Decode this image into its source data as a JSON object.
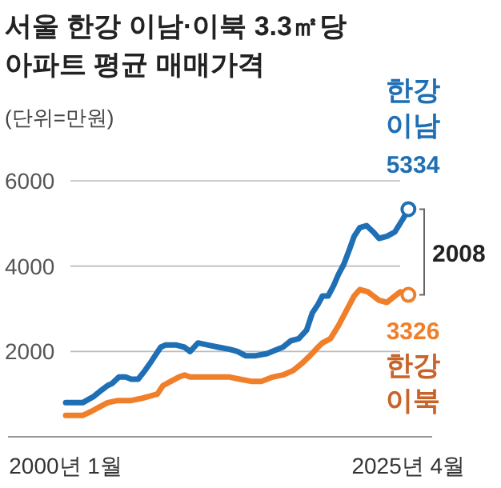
{
  "chart_data": {
    "type": "line",
    "title": "서울 한강 이남·이북 3.3㎡당\n아파트 평균 매매가격",
    "subtitle": "(단위=만원)",
    "xlim": [
      "1995-10",
      "2027-01"
    ],
    "ylim": [
      0,
      6000
    ],
    "yticks": [
      2000,
      4000,
      6000
    ],
    "xticks": [
      {
        "value": "2000-01",
        "label": "2000년 1월"
      },
      {
        "value": "2025-04",
        "label": "2025년 4월"
      }
    ],
    "grid": "y",
    "annotations": [
      "2008"
    ],
    "series": [
      {
        "name": "한강 이남",
        "color": "#1f6fb5",
        "x": [
          "2000-01",
          "2001-04",
          "2002-02",
          "2002-09",
          "2003-02",
          "2003-06",
          "2003-12",
          "2004-06",
          "2004-11",
          "2005-05",
          "2005-11",
          "2006-03",
          "2006-08",
          "2007-01",
          "2007-05",
          "2008-03",
          "2008-10",
          "2009-03",
          "2009-10",
          "2010-07",
          "2011-04",
          "2012-02",
          "2012-09",
          "2013-04",
          "2014-01",
          "2014-11",
          "2015-08",
          "2016-01",
          "2016-08",
          "2017-03",
          "2017-10",
          "2018-03",
          "2018-08",
          "2018-12",
          "2019-05",
          "2019-10",
          "2020-02",
          "2020-07",
          "2020-12",
          "2021-04",
          "2021-09",
          "2022-03",
          "2022-09",
          "2023-02",
          "2023-09",
          "2024-04",
          "2024-11",
          "2025-04"
        ],
        "values": [
          800,
          800,
          950,
          1100,
          1200,
          1250,
          1400,
          1400,
          1350,
          1350,
          1550,
          1700,
          1900,
          2100,
          2150,
          2150,
          2100,
          2000,
          2200,
          2150,
          2100,
          2050,
          2000,
          1900,
          1900,
          1950,
          2050,
          2100,
          2250,
          2300,
          2500,
          2900,
          3100,
          3300,
          3300,
          3550,
          3800,
          4050,
          4400,
          4700,
          4900,
          4950,
          4800,
          4650,
          4700,
          4800,
          5100,
          5334
        ],
        "value_labels": [
          null,
          null,
          null,
          null,
          null,
          null,
          null,
          null,
          null,
          null,
          null,
          null,
          null,
          null,
          null,
          null,
          null,
          null,
          null,
          null,
          null,
          null,
          null,
          null,
          null,
          null,
          null,
          null,
          null,
          null,
          null,
          null,
          null,
          null,
          null,
          null,
          null,
          null,
          null,
          null,
          null,
          null,
          null,
          null,
          null,
          null,
          null,
          "5334"
        ]
      },
      {
        "name": "한강 이북",
        "color": "#f07f2a",
        "x": [
          "2000-01",
          "2001-04",
          "2001-12",
          "2002-07",
          "2003-02",
          "2003-11",
          "2004-11",
          "2005-08",
          "2006-03",
          "2006-10",
          "2007-03",
          "2007-10",
          "2008-05",
          "2008-10",
          "2009-03",
          "2009-10",
          "2010-12",
          "2012-02",
          "2012-11",
          "2013-09",
          "2014-06",
          "2015-04",
          "2016-01",
          "2016-10",
          "2017-05",
          "2018-01",
          "2018-08",
          "2018-12",
          "2019-07",
          "2020-02",
          "2020-09",
          "2021-04",
          "2021-09",
          "2022-04",
          "2022-09",
          "2023-02",
          "2023-09",
          "2024-04",
          "2024-09",
          "2025-04"
        ],
        "values": [
          500,
          500,
          600,
          700,
          800,
          850,
          850,
          900,
          950,
          1000,
          1200,
          1300,
          1400,
          1450,
          1400,
          1400,
          1400,
          1400,
          1350,
          1300,
          1300,
          1400,
          1450,
          1550,
          1700,
          1900,
          2100,
          2200,
          2300,
          2600,
          2950,
          3300,
          3450,
          3400,
          3300,
          3200,
          3150,
          3300,
          3400,
          3326
        ],
        "value_labels": [
          null,
          null,
          null,
          null,
          null,
          null,
          null,
          null,
          null,
          null,
          null,
          null,
          null,
          null,
          null,
          null,
          null,
          null,
          null,
          null,
          null,
          null,
          null,
          null,
          null,
          null,
          null,
          null,
          null,
          null,
          null,
          null,
          null,
          null,
          null,
          null,
          null,
          null,
          null,
          "3326"
        ]
      }
    ]
  }
}
